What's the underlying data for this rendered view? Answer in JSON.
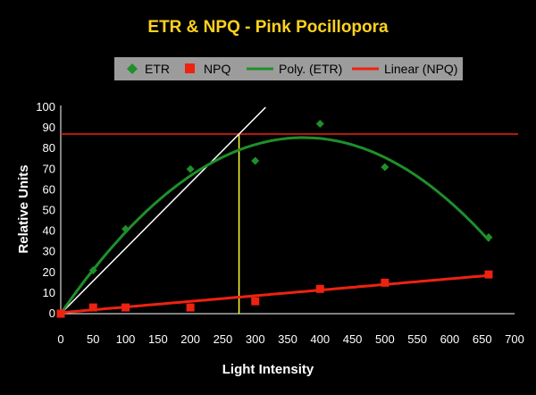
{
  "colors": {
    "background": "#000000",
    "title": "#ffd21e",
    "etr": "#1f8f2a",
    "npq": "#ee2211",
    "guide_white": "#ffffff",
    "guide_yellow": "#ffff33",
    "legend_bg": "#9c9c9c"
  },
  "chart_data": {
    "type": "scatter",
    "title": "ETR & NPQ - Pink Pocillopora",
    "xlabel": "Light Intensity",
    "ylabel": "Relative Units",
    "xlim": [
      0,
      700
    ],
    "ylim": [
      0,
      100
    ],
    "x_ticks": [
      "0",
      "50",
      "100",
      "150",
      "200",
      "250",
      "300",
      "350",
      "400",
      "450",
      "500",
      "550",
      "600",
      "650",
      "700"
    ],
    "y_ticks": [
      "0",
      "10",
      "20",
      "30",
      "40",
      "50",
      "60",
      "70",
      "80",
      "90",
      "100"
    ],
    "grid": false,
    "legend_position": "top",
    "legend": [
      "ETR",
      "NPQ",
      "Poly. (ETR)",
      "Linear (NPQ)"
    ],
    "series": [
      {
        "name": "ETR",
        "marker": "diamond",
        "color": "#1f8f2a",
        "x": [
          0,
          50,
          100,
          200,
          300,
          400,
          500,
          660
        ],
        "y": [
          0,
          21,
          41,
          70,
          74,
          92,
          71,
          37
        ]
      },
      {
        "name": "NPQ",
        "marker": "square",
        "color": "#ee2211",
        "x": [
          0,
          50,
          100,
          200,
          300,
          400,
          500,
          660
        ],
        "y": [
          0,
          3,
          3,
          3,
          6,
          12,
          15,
          19
        ]
      }
    ],
    "trendlines": [
      {
        "name": "Poly. (ETR)",
        "kind": "polynomial",
        "color": "#1f8f2a",
        "coeffs": [
          0,
          0.4557,
          -0.0006088
        ],
        "x_range": [
          0,
          660
        ]
      },
      {
        "name": "Linear (NPQ)",
        "kind": "linear",
        "color": "#ee2211",
        "slope": 0.0273,
        "intercept": 0.5,
        "x_range": [
          0,
          660
        ]
      }
    ],
    "annotations": [
      {
        "kind": "horizontal_line",
        "color": "#ee2211",
        "y": 87,
        "x_range": [
          0,
          700
        ]
      },
      {
        "kind": "vertical_line",
        "color": "#ffff33",
        "x": 275,
        "y_range": [
          0,
          87
        ]
      },
      {
        "kind": "initial_slope_line",
        "color": "#ffffff",
        "slope": 0.3164,
        "x_range": [
          0,
          316
        ]
      }
    ]
  }
}
